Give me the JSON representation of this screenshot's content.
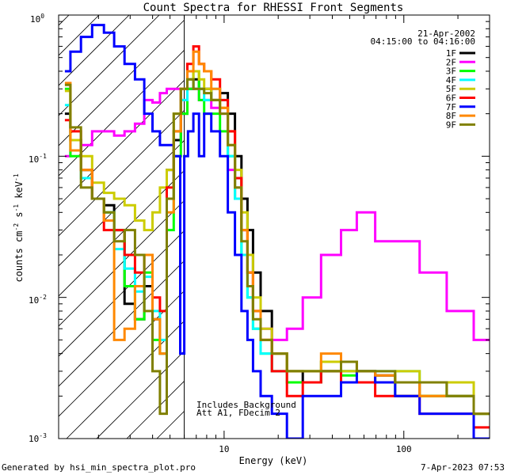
{
  "chart_data": {
    "type": "line",
    "title": "Count Spectra for RHESSI Front Segments",
    "xlabel": "Energy (keV)",
    "ylabel": "counts cm",
    "ylabel_sup1": "-2",
    "ylabel_mid": " s",
    "ylabel_sup2": "-1",
    "ylabel_end": " keV",
    "ylabel_sup3": "-1",
    "x_scale": "log",
    "y_scale": "log",
    "xlim": [
      1.2,
      300
    ],
    "ylim": [
      0.001,
      1.0
    ],
    "grid": false,
    "legend_position": "top-right",
    "date": "21-Apr-2002",
    "time_range": "04:15:00 to 04:16:00",
    "annotations": [
      "Includes Background",
      "Att A1, FDecim  2"
    ],
    "attenuator_hatch_region_keV": [
      1.2,
      6
    ],
    "x_tick_labels": [
      "10",
      "100"
    ],
    "y_tick_base": "10",
    "y_tick_exponents": [
      "0",
      "-1",
      "-2",
      "-3"
    ],
    "footer_left": "Generated by hsi_min_spectra_plot.pro",
    "footer_right": "7-Apr-2023 07:53",
    "series": [
      {
        "name": "1F",
        "color": "#000000",
        "x": [
          1.3,
          1.5,
          1.7,
          2,
          2.3,
          2.6,
          3,
          3.4,
          3.8,
          4.2,
          4.6,
          5,
          5.5,
          6,
          6.5,
          7,
          7.5,
          8,
          9,
          10,
          11,
          12,
          13,
          14,
          15,
          17,
          20,
          25,
          30,
          40,
          50,
          60,
          80,
          100,
          150,
          200,
          300
        ],
        "y": [
          0.2,
          0.13,
          0.08,
          0.05,
          0.045,
          0.03,
          0.009,
          0.007,
          0.012,
          0.007,
          0.004,
          0.08,
          0.13,
          0.2,
          0.3,
          0.35,
          0.3,
          0.3,
          0.25,
          0.28,
          0.2,
          0.1,
          0.05,
          0.03,
          0.015,
          0.008,
          0.004,
          0.003,
          0.0025,
          0.003,
          0.003,
          0.003,
          0.0028,
          0.0025,
          0.002,
          0.002,
          0.0015
        ]
      },
      {
        "name": "2F",
        "color": "#ff00ff",
        "x": [
          1.3,
          1.5,
          1.7,
          2,
          2.3,
          2.6,
          3,
          3.4,
          3.8,
          4.2,
          4.6,
          5,
          5.5,
          6,
          6.5,
          7,
          7.5,
          8,
          9,
          10,
          11,
          12,
          13,
          14,
          15,
          17,
          20,
          25,
          30,
          40,
          50,
          60,
          80,
          100,
          150,
          200,
          300
        ],
        "y": [
          0.1,
          0.11,
          0.12,
          0.15,
          0.15,
          0.14,
          0.15,
          0.17,
          0.25,
          0.24,
          0.28,
          0.3,
          0.3,
          0.25,
          0.3,
          0.3,
          0.25,
          0.25,
          0.22,
          0.2,
          0.08,
          0.05,
          0.03,
          0.015,
          0.008,
          0.006,
          0.005,
          0.006,
          0.01,
          0.02,
          0.03,
          0.04,
          0.025,
          0.025,
          0.015,
          0.008,
          0.005
        ]
      },
      {
        "name": "3F",
        "color": "#00ff00",
        "x": [
          1.3,
          1.5,
          1.7,
          2,
          2.3,
          2.6,
          3,
          3.4,
          3.8,
          4.2,
          4.6,
          5,
          5.5,
          6,
          6.5,
          7,
          7.5,
          8,
          9,
          10,
          11,
          12,
          13,
          14,
          15,
          17,
          20,
          25,
          30,
          40,
          50,
          60,
          80,
          100,
          150,
          200,
          300
        ],
        "y": [
          0.3,
          0.1,
          0.08,
          0.05,
          0.04,
          0.03,
          0.012,
          0.007,
          0.015,
          0.005,
          0.004,
          0.03,
          0.1,
          0.2,
          0.3,
          0.4,
          0.25,
          0.2,
          0.2,
          0.15,
          0.1,
          0.05,
          0.02,
          0.01,
          0.006,
          0.004,
          0.003,
          0.0025,
          0.0025,
          0.003,
          0.0028,
          0.003,
          0.0025,
          0.002,
          0.002,
          0.002,
          0.0015
        ]
      },
      {
        "name": "4F",
        "color": "#00ffff",
        "x": [
          1.3,
          1.5,
          1.7,
          2,
          2.3,
          2.6,
          3,
          3.4,
          3.8,
          4.2,
          4.6,
          5,
          5.5,
          6,
          6.5,
          7,
          7.5,
          8,
          9,
          10,
          11,
          12,
          13,
          14,
          15,
          17,
          20,
          25,
          30,
          40,
          50,
          60,
          80,
          100,
          150,
          200,
          300
        ],
        "y": [
          0.23,
          0.11,
          0.07,
          0.05,
          0.04,
          0.022,
          0.016,
          0.011,
          0.014,
          0.008,
          0.005,
          0.05,
          0.15,
          0.25,
          0.35,
          0.3,
          0.3,
          0.25,
          0.3,
          0.25,
          0.1,
          0.05,
          0.02,
          0.01,
          0.006,
          0.004,
          0.003,
          0.003,
          0.003,
          0.0035,
          0.003,
          0.003,
          0.003,
          0.003,
          0.0025,
          0.002,
          0.0015
        ]
      },
      {
        "name": "5F",
        "color": "#cccc00",
        "x": [
          1.3,
          1.5,
          1.7,
          2,
          2.3,
          2.6,
          3,
          3.4,
          3.8,
          4.2,
          4.6,
          5,
          5.5,
          6,
          6.5,
          7,
          7.5,
          8,
          9,
          10,
          11,
          12,
          13,
          14,
          15,
          17,
          20,
          25,
          30,
          40,
          50,
          60,
          80,
          100,
          150,
          200,
          300
        ],
        "y": [
          0.29,
          0.13,
          0.1,
          0.065,
          0.055,
          0.05,
          0.045,
          0.035,
          0.03,
          0.04,
          0.06,
          0.08,
          0.2,
          0.3,
          0.35,
          0.4,
          0.35,
          0.3,
          0.25,
          0.22,
          0.15,
          0.08,
          0.04,
          0.02,
          0.01,
          0.006,
          0.004,
          0.003,
          0.003,
          0.0035,
          0.003,
          0.003,
          0.0025,
          0.003,
          0.002,
          0.0025,
          0.0015
        ]
      },
      {
        "name": "6F",
        "color": "#ff0000",
        "x": [
          1.3,
          1.5,
          1.7,
          2,
          2.3,
          2.6,
          3,
          3.4,
          3.8,
          4.2,
          4.6,
          5,
          5.5,
          6,
          6.5,
          7,
          7.5,
          8,
          9,
          10,
          11,
          12,
          13,
          14,
          15,
          17,
          20,
          25,
          30,
          40,
          50,
          60,
          80,
          100,
          150,
          200,
          300
        ],
        "y": [
          0.18,
          0.15,
          0.08,
          0.05,
          0.03,
          0.03,
          0.02,
          0.015,
          0.02,
          0.01,
          0.008,
          0.06,
          0.15,
          0.3,
          0.45,
          0.6,
          0.45,
          0.4,
          0.35,
          0.25,
          0.15,
          0.07,
          0.03,
          0.015,
          0.008,
          0.005,
          0.003,
          0.002,
          0.0025,
          0.003,
          0.0025,
          0.0025,
          0.002,
          0.002,
          0.0015,
          0.0015,
          0.0012
        ]
      },
      {
        "name": "7F",
        "color": "#0000ff",
        "x": [
          1.3,
          1.5,
          1.7,
          2,
          2.3,
          2.6,
          3,
          3.4,
          3.8,
          4.2,
          4.6,
          5,
          5.5,
          5.9,
          6.1,
          6.5,
          7,
          7.5,
          8,
          9,
          10,
          11,
          12,
          13,
          14,
          15,
          17,
          20,
          25,
          30,
          40,
          50,
          60,
          80,
          100,
          150,
          200,
          300
        ],
        "y": [
          0.4,
          0.55,
          0.7,
          0.85,
          0.75,
          0.6,
          0.45,
          0.35,
          0.2,
          0.15,
          0.12,
          0.12,
          0.1,
          0.004,
          0.1,
          0.15,
          0.2,
          0.1,
          0.2,
          0.15,
          0.1,
          0.04,
          0.02,
          0.008,
          0.005,
          0.003,
          0.002,
          0.0015,
          0.001,
          0.002,
          0.002,
          0.0025,
          0.003,
          0.0025,
          0.002,
          0.0015,
          0.0015,
          0.001
        ]
      },
      {
        "name": "8F",
        "color": "#ff8800",
        "x": [
          1.3,
          1.5,
          1.7,
          2,
          2.3,
          2.6,
          3,
          3.4,
          3.8,
          4.2,
          4.6,
          5,
          5.5,
          6,
          6.5,
          7,
          7.5,
          8,
          9,
          10,
          11,
          12,
          13,
          14,
          15,
          17,
          20,
          25,
          30,
          40,
          50,
          60,
          80,
          100,
          150,
          200,
          300
        ],
        "y": [
          0.33,
          0.11,
          0.08,
          0.05,
          0.035,
          0.005,
          0.006,
          0.012,
          0.02,
          0.007,
          0.004,
          0.04,
          0.15,
          0.3,
          0.4,
          0.55,
          0.45,
          0.4,
          0.3,
          0.22,
          0.12,
          0.06,
          0.03,
          0.015,
          0.008,
          0.005,
          0.004,
          0.003,
          0.003,
          0.004,
          0.0035,
          0.003,
          0.0028,
          0.0025,
          0.002,
          0.002,
          0.0015
        ]
      },
      {
        "name": "9F",
        "color": "#808000",
        "x": [
          1.3,
          1.5,
          1.7,
          2,
          2.3,
          2.6,
          3,
          3.4,
          3.8,
          4.2,
          4.6,
          5,
          5.5,
          6,
          6.5,
          7,
          7.5,
          8,
          9,
          10,
          11,
          12,
          13,
          14,
          15,
          17,
          20,
          25,
          30,
          40,
          50,
          60,
          80,
          100,
          150,
          200,
          300
        ],
        "y": [
          0.32,
          0.16,
          0.06,
          0.05,
          0.04,
          0.025,
          0.03,
          0.02,
          0.008,
          0.003,
          0.0015,
          0.05,
          0.2,
          0.3,
          0.35,
          0.3,
          0.3,
          0.28,
          0.25,
          0.2,
          0.12,
          0.06,
          0.025,
          0.012,
          0.007,
          0.005,
          0.004,
          0.003,
          0.003,
          0.003,
          0.0035,
          0.003,
          0.003,
          0.0025,
          0.0025,
          0.002,
          0.0015
        ]
      }
    ]
  }
}
